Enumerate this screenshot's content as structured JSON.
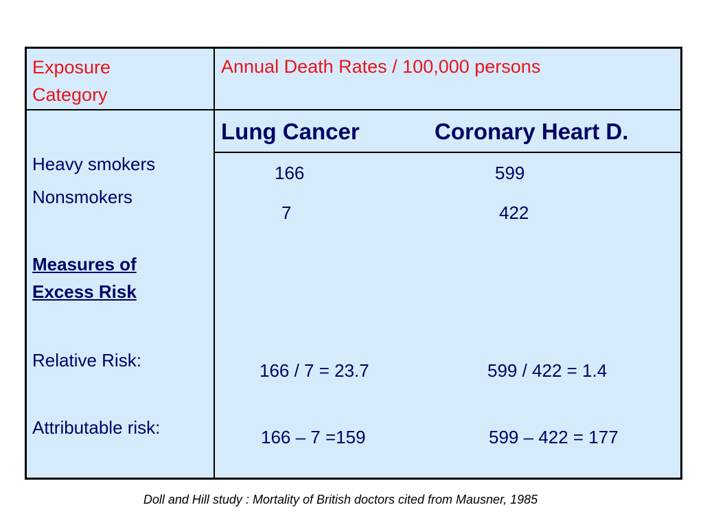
{
  "table": {
    "header": [
      "Exposure Category",
      "Annual Death Rates / 100,000 persons"
    ],
    "column_headers": [
      "Lung Cancer",
      "Coronary Heart D."
    ],
    "rows": [
      {
        "label": "Heavy smokers",
        "values": [
          "166",
          "599"
        ]
      },
      {
        "label": "Nonsmokers",
        "values": [
          "7",
          "422"
        ]
      }
    ],
    "section": "Measures of Excess Risk",
    "measures": [
      {
        "label": "Relative Risk:",
        "values": [
          "166 / 7 = 23.7",
          "599 / 422 = 1.4"
        ]
      },
      {
        "label": "Attributable risk:",
        "values": [
          "166 – 7 =159",
          "599 – 422 = 177"
        ]
      }
    ]
  },
  "caption": "Doll and Hill study : Mortality of British doctors cited from Mausner, 1985"
}
